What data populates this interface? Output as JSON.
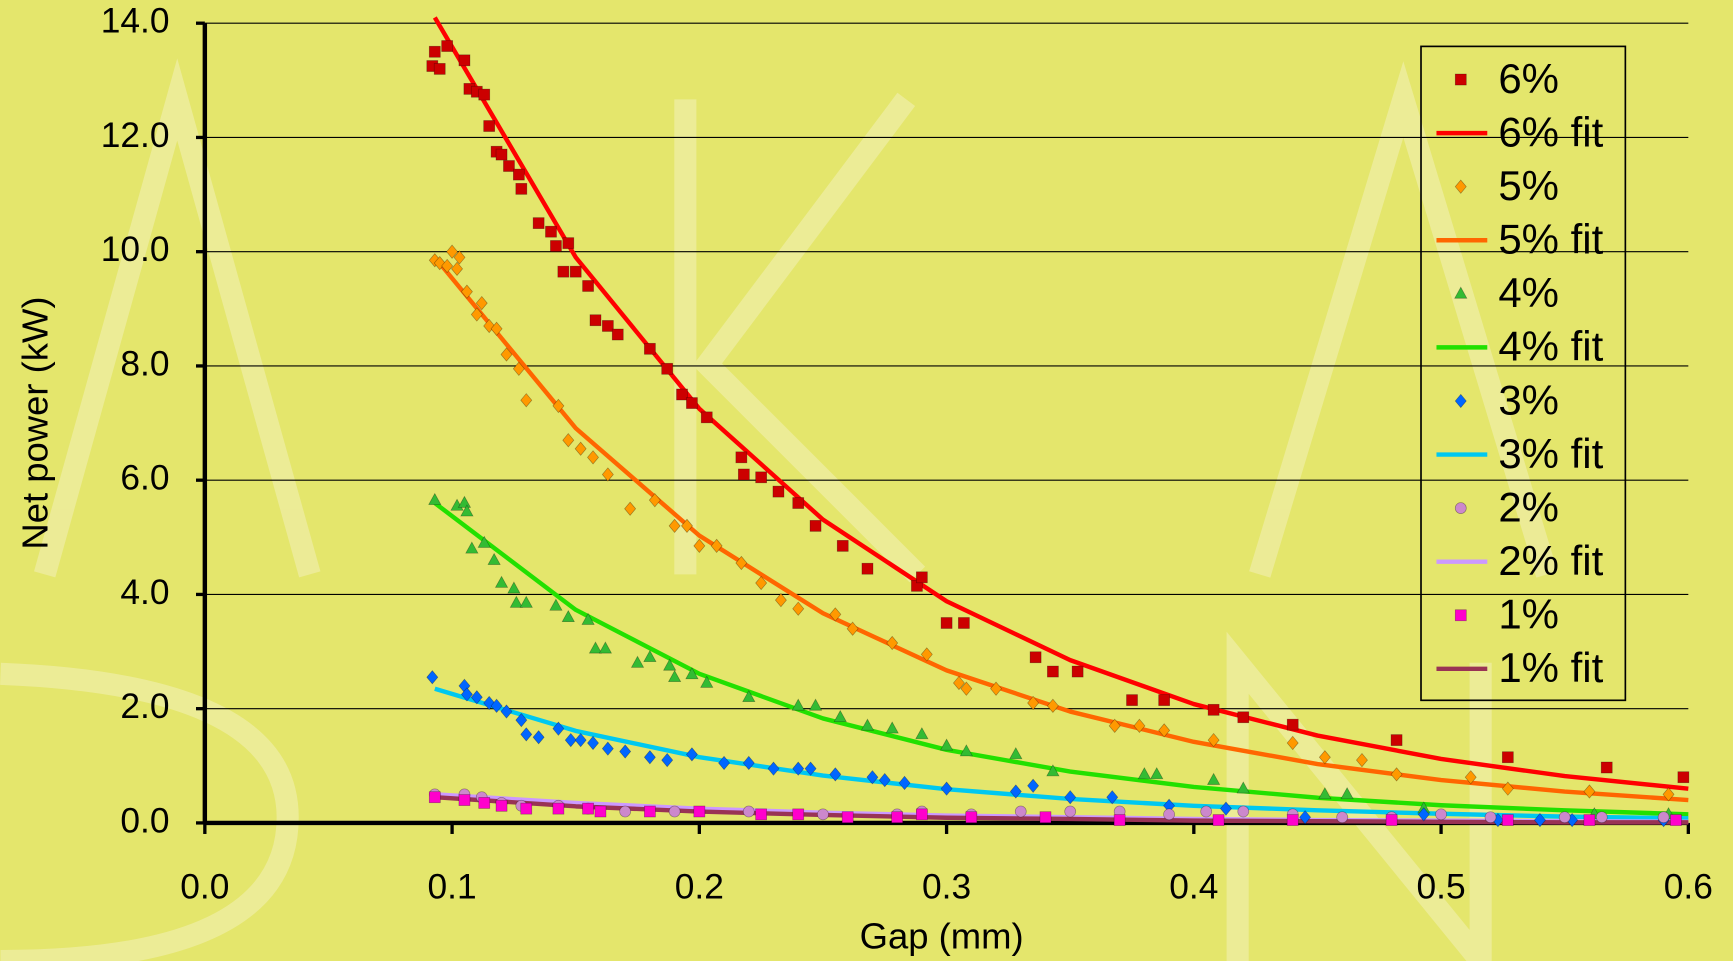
{
  "chart_data": {
    "type": "scatter",
    "x_label": "Gap (mm)",
    "y_label": "Net power (kW)",
    "xlim": [
      0,
      0.6
    ],
    "ylim": [
      0,
      14
    ],
    "xticks": [
      {
        "value": 0,
        "label": "0.0"
      },
      0.1,
      0.2,
      0.3,
      0.4,
      0.5,
      0.6
    ],
    "yticks": [
      {
        "value": 0,
        "label": "0.0"
      },
      {
        "value": 2,
        "label": "2.0"
      },
      {
        "value": 4,
        "label": "4.0"
      },
      {
        "value": 6,
        "label": "6.0"
      },
      {
        "value": 8,
        "label": "8.0"
      },
      {
        "value": 10,
        "label": "10.0"
      },
      {
        "value": 12,
        "label": "12.0"
      },
      {
        "value": 14,
        "label": "14.0"
      }
    ],
    "grid": true,
    "legend": "upper right",
    "series": [
      {
        "name": "6%",
        "type": "scatter",
        "marker": "square",
        "color": "#cc0000",
        "x": [
          0.092,
          0.093,
          0.095,
          0.098,
          0.105,
          0.107,
          0.11,
          0.113,
          0.115,
          0.118,
          0.12,
          0.123,
          0.127,
          0.128,
          0.135,
          0.14,
          0.142,
          0.145,
          0.147,
          0.15,
          0.155,
          0.158,
          0.163,
          0.167,
          0.18,
          0.187,
          0.193,
          0.197,
          0.203,
          0.217,
          0.218,
          0.225,
          0.232,
          0.24,
          0.247,
          0.258,
          0.268,
          0.288,
          0.29,
          0.3,
          0.307,
          0.336,
          0.343,
          0.353,
          0.375,
          0.388,
          0.408,
          0.42,
          0.44,
          0.482,
          0.527,
          0.567,
          0.598
        ],
        "values": [
          13.25,
          13.5,
          13.2,
          13.6,
          13.35,
          12.85,
          12.8,
          12.75,
          12.2,
          11.75,
          11.7,
          11.5,
          11.35,
          11.1,
          10.5,
          10.35,
          10.1,
          9.65,
          10.15,
          9.65,
          9.4,
          8.8,
          8.7,
          8.55,
          8.3,
          7.95,
          7.5,
          7.35,
          7.1,
          6.4,
          6.1,
          6.05,
          5.8,
          5.6,
          5.2,
          4.85,
          4.45,
          4.15,
          4.3,
          3.5,
          3.5,
          2.9,
          2.65,
          2.65,
          2.15,
          2.15,
          1.98,
          1.85,
          1.72,
          1.45,
          1.15,
          0.97,
          0.8
        ]
      },
      {
        "name": "6% fit",
        "type": "line",
        "color": "#ff0000",
        "x": [
          0.093,
          0.15,
          0.2,
          0.25,
          0.3,
          0.35,
          0.4,
          0.45,
          0.5,
          0.55,
          0.6
        ],
        "values": [
          14.1,
          9.9,
          7.25,
          5.31,
          3.88,
          2.85,
          2.08,
          1.53,
          1.12,
          0.82,
          0.6
        ]
      },
      {
        "name": "5%",
        "type": "scatter",
        "marker": "diamond",
        "color": "#ff9900",
        "x": [
          0.093,
          0.095,
          0.098,
          0.1,
          0.102,
          0.103,
          0.106,
          0.11,
          0.112,
          0.115,
          0.118,
          0.122,
          0.127,
          0.13,
          0.143,
          0.147,
          0.152,
          0.157,
          0.163,
          0.172,
          0.182,
          0.19,
          0.195,
          0.2,
          0.207,
          0.217,
          0.225,
          0.233,
          0.24,
          0.255,
          0.262,
          0.278,
          0.292,
          0.305,
          0.308,
          0.32,
          0.335,
          0.343,
          0.368,
          0.378,
          0.388,
          0.408,
          0.44,
          0.453,
          0.468,
          0.482,
          0.512,
          0.527,
          0.56,
          0.592
        ],
        "values": [
          9.85,
          9.8,
          9.75,
          10.0,
          9.7,
          9.9,
          9.3,
          8.9,
          9.1,
          8.7,
          8.65,
          8.2,
          7.95,
          7.4,
          7.3,
          6.7,
          6.55,
          6.4,
          6.1,
          5.5,
          5.65,
          5.2,
          5.2,
          4.85,
          4.85,
          4.55,
          4.2,
          3.9,
          3.75,
          3.65,
          3.4,
          3.15,
          2.95,
          2.45,
          2.35,
          2.35,
          2.1,
          2.05,
          1.7,
          1.7,
          1.62,
          1.45,
          1.4,
          1.15,
          1.1,
          0.85,
          0.8,
          0.6,
          0.55,
          0.5
        ]
      },
      {
        "name": "5% fit",
        "type": "line",
        "color": "#ff6600",
        "x": [
          0.093,
          0.15,
          0.2,
          0.25,
          0.3,
          0.35,
          0.4,
          0.45,
          0.5,
          0.55,
          0.6
        ],
        "values": [
          9.9,
          6.91,
          5.03,
          3.67,
          2.67,
          1.95,
          1.42,
          1.03,
          0.75,
          0.55,
          0.4
        ]
      },
      {
        "name": "4%",
        "type": "scatter",
        "marker": "triangle",
        "color": "#33bb33",
        "x": [
          0.093,
          0.102,
          0.105,
          0.106,
          0.108,
          0.113,
          0.117,
          0.12,
          0.125,
          0.126,
          0.13,
          0.142,
          0.147,
          0.155,
          0.158,
          0.162,
          0.175,
          0.18,
          0.188,
          0.19,
          0.197,
          0.203,
          0.22,
          0.24,
          0.247,
          0.257,
          0.268,
          0.278,
          0.29,
          0.3,
          0.308,
          0.328,
          0.343,
          0.38,
          0.385,
          0.408,
          0.42,
          0.453,
          0.462,
          0.493,
          0.562,
          0.592
        ],
        "values": [
          5.65,
          5.55,
          5.6,
          5.45,
          4.8,
          4.9,
          4.6,
          4.2,
          4.1,
          3.85,
          3.85,
          3.8,
          3.6,
          3.55,
          3.05,
          3.05,
          2.8,
          2.9,
          2.75,
          2.55,
          2.6,
          2.45,
          2.2,
          2.05,
          2.05,
          1.85,
          1.7,
          1.65,
          1.55,
          1.35,
          1.25,
          1.2,
          0.9,
          0.85,
          0.85,
          0.75,
          0.6,
          0.5,
          0.5,
          0.25,
          0.15,
          0.15
        ]
      },
      {
        "name": "4% fit",
        "type": "line",
        "color": "#22e000",
        "x": [
          0.093,
          0.15,
          0.2,
          0.25,
          0.3,
          0.35,
          0.4,
          0.45,
          0.5,
          0.55,
          0.6
        ],
        "values": [
          5.6,
          3.73,
          2.61,
          1.83,
          1.28,
          0.9,
          0.63,
          0.44,
          0.31,
          0.22,
          0.15
        ]
      },
      {
        "name": "3%",
        "type": "scatter",
        "marker": "diamond",
        "color": "#0066ff",
        "x": [
          0.092,
          0.105,
          0.106,
          0.11,
          0.115,
          0.118,
          0.122,
          0.128,
          0.13,
          0.135,
          0.143,
          0.148,
          0.152,
          0.157,
          0.163,
          0.17,
          0.18,
          0.187,
          0.197,
          0.21,
          0.22,
          0.23,
          0.24,
          0.245,
          0.255,
          0.27,
          0.275,
          0.283,
          0.3,
          0.328,
          0.335,
          0.35,
          0.367,
          0.39,
          0.413,
          0.445,
          0.493,
          0.523,
          0.54,
          0.553,
          0.59
        ],
        "values": [
          2.55,
          2.4,
          2.25,
          2.2,
          2.1,
          2.05,
          1.95,
          1.8,
          1.55,
          1.5,
          1.65,
          1.45,
          1.45,
          1.4,
          1.3,
          1.25,
          1.15,
          1.1,
          1.2,
          1.05,
          1.05,
          0.95,
          0.95,
          0.95,
          0.85,
          0.8,
          0.75,
          0.7,
          0.6,
          0.55,
          0.65,
          0.45,
          0.45,
          0.3,
          0.25,
          0.1,
          0.15,
          0.05,
          0.05,
          0.05,
          0.05
        ]
      },
      {
        "name": "3% fit",
        "type": "line",
        "color": "#00c8f0",
        "x": [
          0.093,
          0.15,
          0.2,
          0.25,
          0.3,
          0.35,
          0.4,
          0.45,
          0.5,
          0.55,
          0.6
        ],
        "values": [
          2.35,
          1.61,
          1.15,
          0.83,
          0.59,
          0.42,
          0.3,
          0.22,
          0.16,
          0.11,
          0.08
        ]
      },
      {
        "name": "2%",
        "type": "scatter",
        "marker": "circle",
        "color": "#cc88cc",
        "x": [
          0.093,
          0.105,
          0.112,
          0.12,
          0.128,
          0.143,
          0.155,
          0.17,
          0.19,
          0.22,
          0.25,
          0.28,
          0.29,
          0.31,
          0.33,
          0.35,
          0.37,
          0.39,
          0.405,
          0.42,
          0.44,
          0.46,
          0.48,
          0.5,
          0.52,
          0.55,
          0.565,
          0.59
        ],
        "values": [
          0.5,
          0.5,
          0.45,
          0.35,
          0.3,
          0.3,
          0.25,
          0.2,
          0.2,
          0.2,
          0.15,
          0.15,
          0.2,
          0.15,
          0.2,
          0.2,
          0.2,
          0.15,
          0.2,
          0.2,
          0.15,
          0.1,
          0.1,
          0.15,
          0.1,
          0.1,
          0.1,
          0.1
        ]
      },
      {
        "name": "2% fit",
        "type": "line",
        "color": "#cc99ff",
        "x": [
          0.093,
          0.15,
          0.2,
          0.25,
          0.3,
          0.35,
          0.4,
          0.45,
          0.5,
          0.55,
          0.6
        ],
        "values": [
          0.5,
          0.35,
          0.25,
          0.18,
          0.13,
          0.1,
          0.07,
          0.05,
          0.04,
          0.03,
          0.02
        ]
      },
      {
        "name": "1%",
        "type": "scatter",
        "marker": "square",
        "color": "#ff00cc",
        "x": [
          0.093,
          0.105,
          0.113,
          0.12,
          0.13,
          0.143,
          0.155,
          0.16,
          0.18,
          0.2,
          0.225,
          0.24,
          0.26,
          0.28,
          0.29,
          0.31,
          0.34,
          0.37,
          0.41,
          0.44,
          0.48,
          0.527,
          0.56,
          0.595
        ],
        "values": [
          0.45,
          0.4,
          0.35,
          0.3,
          0.25,
          0.25,
          0.25,
          0.2,
          0.2,
          0.2,
          0.15,
          0.15,
          0.1,
          0.1,
          0.15,
          0.1,
          0.1,
          0.05,
          0.05,
          0.05,
          0.05,
          0.05,
          0.05,
          0.05
        ]
      },
      {
        "name": "1% fit",
        "type": "line",
        "color": "#993355",
        "x": [
          0.093,
          0.15,
          0.2,
          0.25,
          0.3,
          0.35,
          0.4,
          0.45,
          0.5,
          0.55,
          0.6
        ],
        "values": [
          0.45,
          0.29,
          0.2,
          0.14,
          0.09,
          0.07,
          0.04,
          0.03,
          0.02,
          0.01,
          0.01
        ]
      }
    ]
  }
}
